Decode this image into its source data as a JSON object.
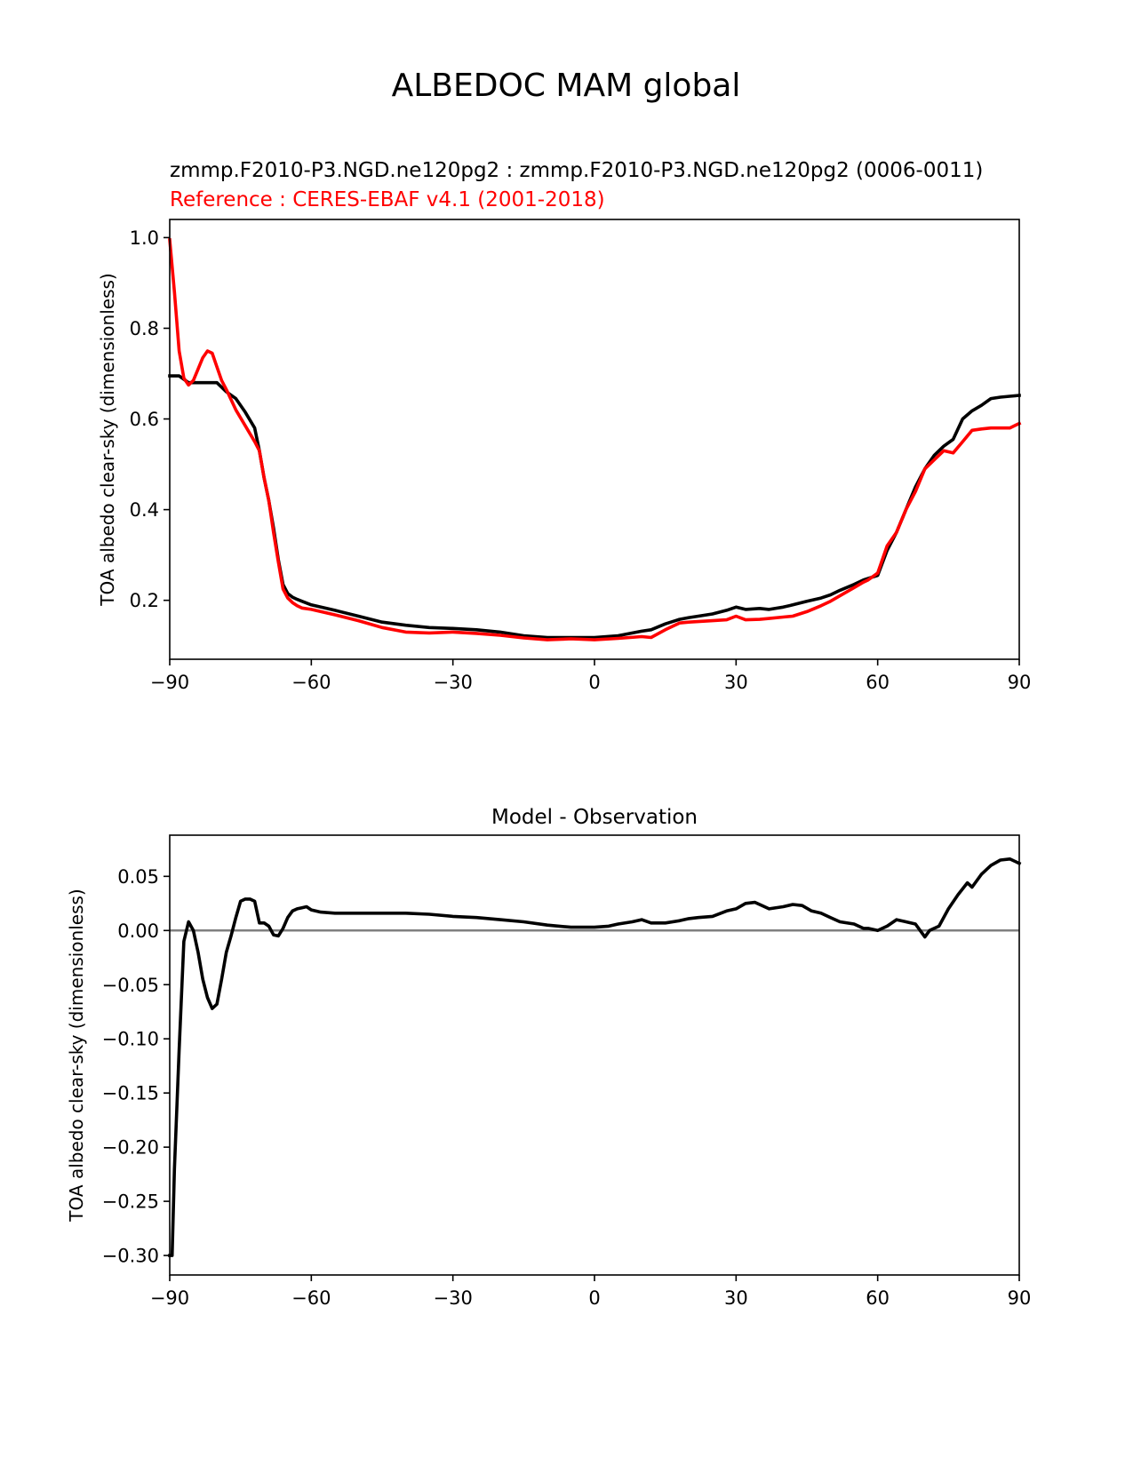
{
  "figure": {
    "suptitle": "ALBEDOC MAM global"
  },
  "chart_data": [
    {
      "type": "line",
      "title_lines": [
        {
          "text": "zmmp.F2010-P3.NGD.ne120pg2 : zmmp.F2010-P3.NGD.ne120pg2 (0006-0011)",
          "color": "#000000"
        },
        {
          "text": "Reference : CERES-EBAF v4.1 (2001-2018)",
          "color": "#ff0000"
        }
      ],
      "xlabel": "",
      "ylabel": "TOA albedo clear-sky (dimensionless)",
      "xlim": [
        -90,
        90
      ],
      "ylim": [
        0.07,
        1.04
      ],
      "xticks": [
        -90,
        -60,
        -30,
        0,
        30,
        60,
        90
      ],
      "xtick_labels": [
        "−90",
        "−60",
        "−30",
        "0",
        "30",
        "60",
        "90"
      ],
      "yticks": [
        0.2,
        0.4,
        0.6,
        0.8,
        1.0
      ],
      "ytick_labels": [
        "0.2",
        "0.4",
        "0.6",
        "0.8",
        "1.0"
      ],
      "grid": false,
      "series": [
        {
          "color": "#000000",
          "x": [
            -90,
            -88,
            -86,
            -84,
            -82,
            -80,
            -78,
            -76,
            -74,
            -72,
            -71,
            -70,
            -69,
            -68,
            -67,
            -66,
            -65,
            -64,
            -63,
            -62,
            -60,
            -55,
            -50,
            -45,
            -40,
            -35,
            -30,
            -25,
            -20,
            -15,
            -10,
            -5,
            0,
            5,
            10,
            12,
            15,
            18,
            20,
            22,
            25,
            28,
            30,
            32,
            35,
            37,
            40,
            42,
            45,
            48,
            50,
            52,
            55,
            57,
            60,
            62,
            64,
            66,
            68,
            70,
            72,
            74,
            76,
            78,
            80,
            82,
            84,
            86,
            88,
            90
          ],
          "y": [
            0.695,
            0.695,
            0.68,
            0.68,
            0.68,
            0.68,
            0.66,
            0.645,
            0.615,
            0.58,
            0.53,
            0.47,
            0.42,
            0.36,
            0.29,
            0.235,
            0.215,
            0.207,
            0.202,
            0.198,
            0.19,
            0.178,
            0.165,
            0.152,
            0.145,
            0.14,
            0.138,
            0.135,
            0.13,
            0.122,
            0.118,
            0.118,
            0.118,
            0.122,
            0.132,
            0.135,
            0.148,
            0.158,
            0.162,
            0.165,
            0.17,
            0.178,
            0.185,
            0.18,
            0.182,
            0.18,
            0.185,
            0.19,
            0.198,
            0.205,
            0.212,
            0.222,
            0.235,
            0.245,
            0.255,
            0.31,
            0.35,
            0.4,
            0.45,
            0.49,
            0.52,
            0.54,
            0.555,
            0.6,
            0.618,
            0.63,
            0.645,
            0.648,
            0.65,
            0.652
          ]
        },
        {
          "color": "#ff0000",
          "x": [
            -90,
            -89,
            -88,
            -87,
            -86,
            -85,
            -84,
            -83,
            -82,
            -81,
            -80,
            -79,
            -78,
            -76,
            -74,
            -72,
            -71,
            -70,
            -69,
            -68,
            -67,
            -66,
            -65,
            -64,
            -63,
            -62,
            -60,
            -55,
            -50,
            -45,
            -40,
            -35,
            -30,
            -25,
            -20,
            -15,
            -10,
            -5,
            0,
            5,
            10,
            12,
            15,
            18,
            20,
            25,
            28,
            30,
            32,
            35,
            37,
            40,
            42,
            45,
            48,
            50,
            52,
            55,
            57,
            58,
            60,
            62,
            64,
            66,
            68,
            70,
            72,
            74,
            76,
            78,
            80,
            82,
            84,
            86,
            88,
            90
          ],
          "y": [
            0.995,
            0.88,
            0.75,
            0.69,
            0.675,
            0.685,
            0.71,
            0.735,
            0.75,
            0.745,
            0.715,
            0.685,
            0.665,
            0.62,
            0.585,
            0.55,
            0.53,
            0.47,
            0.42,
            0.35,
            0.285,
            0.225,
            0.205,
            0.195,
            0.188,
            0.183,
            0.18,
            0.168,
            0.155,
            0.14,
            0.13,
            0.128,
            0.13,
            0.127,
            0.123,
            0.117,
            0.113,
            0.115,
            0.113,
            0.116,
            0.12,
            0.118,
            0.135,
            0.15,
            0.152,
            0.155,
            0.157,
            0.165,
            0.157,
            0.158,
            0.16,
            0.163,
            0.165,
            0.175,
            0.188,
            0.198,
            0.21,
            0.228,
            0.24,
            0.245,
            0.26,
            0.32,
            0.35,
            0.4,
            0.44,
            0.49,
            0.51,
            0.53,
            0.525,
            0.55,
            0.575,
            0.578,
            0.58,
            0.58,
            0.58,
            0.59
          ]
        }
      ]
    },
    {
      "type": "line",
      "title_lines": [
        {
          "text": "Model - Observation",
          "color": "#000000"
        }
      ],
      "xlabel": "",
      "ylabel": "TOA albedo clear-sky (dimensionless)",
      "xlim": [
        -90,
        90
      ],
      "ylim": [
        -0.318,
        0.088
      ],
      "xticks": [
        -90,
        -60,
        -30,
        0,
        30,
        60,
        90
      ],
      "xtick_labels": [
        "−90",
        "−60",
        "−30",
        "0",
        "30",
        "60",
        "90"
      ],
      "yticks": [
        -0.3,
        -0.25,
        -0.2,
        -0.15,
        -0.1,
        -0.05,
        0.0,
        0.05
      ],
      "ytick_labels": [
        "−0.30",
        "−0.25",
        "−0.20",
        "−0.15",
        "−0.10",
        "−0.05",
        "0.00",
        "0.05"
      ],
      "grid": false,
      "hline": {
        "y": 0.0,
        "color": "#808080"
      },
      "series": [
        {
          "color": "#000000",
          "x": [
            -90,
            -89.5,
            -89,
            -88,
            -87,
            -86,
            -85,
            -84,
            -83,
            -82,
            -81,
            -80,
            -79,
            -78,
            -77,
            -76,
            -75,
            -74,
            -73,
            -72,
            -71,
            -70,
            -69,
            -68,
            -67,
            -66,
            -65,
            -64,
            -63,
            -62,
            -61,
            -60,
            -58,
            -55,
            -50,
            -45,
            -40,
            -35,
            -30,
            -25,
            -20,
            -15,
            -10,
            -5,
            0,
            3,
            5,
            8,
            10,
            12,
            15,
            18,
            20,
            22,
            25,
            28,
            30,
            32,
            34,
            37,
            40,
            42,
            44,
            46,
            48,
            50,
            52,
            55,
            57,
            58,
            60,
            62,
            64,
            66,
            68,
            69,
            70,
            71,
            73,
            75,
            77,
            79,
            80,
            82,
            84,
            86,
            88,
            90
          ],
          "y": [
            -0.3,
            -0.3,
            -0.22,
            -0.11,
            -0.01,
            0.008,
            0.0,
            -0.02,
            -0.045,
            -0.062,
            -0.072,
            -0.068,
            -0.045,
            -0.02,
            -0.005,
            0.012,
            0.027,
            0.029,
            0.029,
            0.027,
            0.007,
            0.007,
            0.004,
            -0.004,
            -0.005,
            0.002,
            0.012,
            0.018,
            0.02,
            0.021,
            0.022,
            0.019,
            0.017,
            0.016,
            0.016,
            0.016,
            0.016,
            0.015,
            0.013,
            0.012,
            0.01,
            0.008,
            0.005,
            0.003,
            0.003,
            0.004,
            0.006,
            0.008,
            0.01,
            0.007,
            0.007,
            0.009,
            0.011,
            0.012,
            0.013,
            0.018,
            0.02,
            0.025,
            0.026,
            0.02,
            0.022,
            0.024,
            0.023,
            0.018,
            0.016,
            0.012,
            0.008,
            0.006,
            0.002,
            0.002,
            0.0,
            0.004,
            0.01,
            0.008,
            0.006,
            0.0,
            -0.006,
            0.0,
            0.004,
            0.02,
            0.033,
            0.044,
            0.04,
            0.052,
            0.06,
            0.065,
            0.066,
            0.062
          ]
        }
      ]
    }
  ]
}
